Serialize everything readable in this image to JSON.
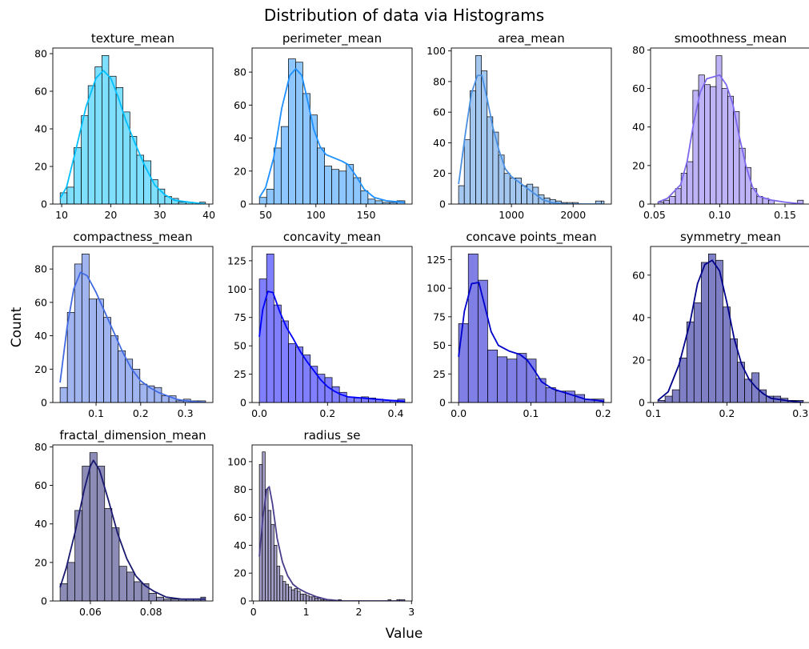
{
  "figure": {
    "title": "Distribution of data via Histograms",
    "xlabel": "Value",
    "ylabel": "Count"
  },
  "chart_data": [
    {
      "type": "histogram",
      "title": "texture_mean",
      "color": "#00BFFF",
      "bins": [
        9.7,
        11.1,
        12.5,
        14.0,
        15.4,
        16.8,
        18.2,
        19.6,
        21.1,
        22.5,
        23.9,
        25.3,
        26.7,
        28.2,
        29.6,
        31.0,
        32.4,
        33.8,
        35.3,
        36.7,
        38.1,
        39.3
      ],
      "counts": [
        6,
        9,
        30,
        47,
        63,
        73,
        79,
        68,
        62,
        49,
        36,
        26,
        23,
        13,
        8,
        4,
        3,
        1,
        1,
        0,
        1
      ],
      "kde": [
        [
          9.7,
          3
        ],
        [
          11,
          9
        ],
        [
          13,
          30
        ],
        [
          15,
          52
        ],
        [
          17,
          67
        ],
        [
          18.5,
          71
        ],
        [
          20,
          67
        ],
        [
          21.5,
          57
        ],
        [
          23,
          45
        ],
        [
          25,
          32
        ],
        [
          27,
          20
        ],
        [
          29,
          10
        ],
        [
          31,
          5
        ],
        [
          33,
          2
        ],
        [
          36,
          1
        ],
        [
          39.3,
          0
        ]
      ],
      "xlim": [
        8.2,
        40.8
      ],
      "ylim": [
        0,
        83
      ],
      "xticks": [
        10,
        20,
        30,
        40
      ],
      "yticks": [
        0,
        20,
        40,
        60,
        80
      ]
    },
    {
      "type": "histogram",
      "title": "perimeter_mean",
      "color": "#1E90FF",
      "bins": [
        43.8,
        51.0,
        58.2,
        65.4,
        72.6,
        79.8,
        87.0,
        94.2,
        101.4,
        108.6,
        115.8,
        123.0,
        130.2,
        137.4,
        144.6,
        151.8,
        159.0,
        166.2,
        173.4,
        180.6,
        188.5
      ],
      "counts": [
        4,
        9,
        34,
        47,
        88,
        86,
        67,
        54,
        34,
        23,
        21,
        20,
        24,
        16,
        8,
        3,
        2,
        1,
        1,
        2
      ],
      "kde": [
        [
          43.8,
          4
        ],
        [
          50,
          10
        ],
        [
          58,
          28
        ],
        [
          66,
          58
        ],
        [
          74,
          78
        ],
        [
          80,
          82
        ],
        [
          86,
          78
        ],
        [
          92,
          62
        ],
        [
          98,
          45
        ],
        [
          104,
          35
        ],
        [
          110,
          30
        ],
        [
          118,
          28
        ],
        [
          126,
          26
        ],
        [
          132,
          24
        ],
        [
          140,
          17
        ],
        [
          148,
          9
        ],
        [
          158,
          4
        ],
        [
          170,
          2
        ],
        [
          188,
          1
        ]
      ],
      "xlim": [
        36.5,
        195.7
      ],
      "ylim": [
        0,
        94.6
      ],
      "xticks": [
        50,
        100,
        150
      ],
      "yticks": [
        0,
        20,
        40,
        60,
        80
      ]
    },
    {
      "type": "histogram",
      "title": "area_mean",
      "color": "#4A90E2",
      "bins": [
        144,
        236,
        329,
        421,
        514,
        606,
        698,
        791,
        883,
        976,
        1068,
        1161,
        1253,
        1346,
        1438,
        1530,
        1623,
        1715,
        1808,
        1900,
        1993,
        2085,
        2178,
        2270,
        2363,
        2455,
        2501
      ],
      "counts": [
        12,
        42,
        74,
        97,
        87,
        57,
        47,
        32,
        20,
        17,
        17,
        12,
        13,
        11,
        6,
        4,
        3,
        2,
        1,
        1,
        1,
        0,
        0,
        0,
        2,
        2
      ],
      "kde": [
        [
          144,
          13
        ],
        [
          250,
          45
        ],
        [
          350,
          72
        ],
        [
          450,
          84
        ],
        [
          520,
          84
        ],
        [
          600,
          70
        ],
        [
          700,
          50
        ],
        [
          800,
          35
        ],
        [
          900,
          23
        ],
        [
          1000,
          18
        ],
        [
          1100,
          15
        ],
        [
          1200,
          12
        ],
        [
          1300,
          9
        ],
        [
          1400,
          6
        ],
        [
          1500,
          3
        ],
        [
          1650,
          1
        ],
        [
          1900,
          0
        ],
        [
          2501,
          0
        ]
      ],
      "xlim": [
        26,
        2619
      ],
      "ylim": [
        0,
        101.9
      ],
      "xticks": [
        1000,
        2000
      ],
      "yticks": [
        0,
        20,
        40,
        60,
        80,
        100
      ]
    },
    {
      "type": "histogram",
      "title": "smoothness_mean",
      "color": "#7B68EE",
      "bins": [
        0.0526,
        0.0571,
        0.0615,
        0.066,
        0.0704,
        0.0749,
        0.0794,
        0.0838,
        0.0883,
        0.0927,
        0.0972,
        0.1016,
        0.1061,
        0.1105,
        0.115,
        0.1195,
        0.1239,
        0.1284,
        0.1328,
        0.1373,
        0.1417,
        0.1462,
        0.1507,
        0.1551,
        0.1596,
        0.164
      ],
      "counts": [
        1,
        2,
        4,
        8,
        16,
        22,
        59,
        67,
        62,
        61,
        77,
        60,
        56,
        48,
        29,
        19,
        8,
        4,
        3,
        2,
        0,
        0,
        0,
        0,
        2
      ],
      "kde": [
        [
          0.0526,
          1
        ],
        [
          0.06,
          3
        ],
        [
          0.07,
          10
        ],
        [
          0.075,
          22
        ],
        [
          0.08,
          42
        ],
        [
          0.085,
          58
        ],
        [
          0.09,
          65
        ],
        [
          0.095,
          66
        ],
        [
          0.1,
          67
        ],
        [
          0.105,
          62
        ],
        [
          0.11,
          52
        ],
        [
          0.115,
          35
        ],
        [
          0.12,
          20
        ],
        [
          0.125,
          9
        ],
        [
          0.13,
          4
        ],
        [
          0.14,
          2
        ],
        [
          0.15,
          1
        ],
        [
          0.164,
          0
        ]
      ],
      "xlim": [
        0.047,
        0.1696
      ],
      "ylim": [
        0,
        81
      ],
      "xticks": [
        0.05,
        0.1,
        0.15
      ],
      "yticks": [
        0,
        20,
        40,
        60,
        80
      ]
    },
    {
      "type": "histogram",
      "title": "compactness_mean",
      "color": "#4169E1",
      "bins": [
        0.0194,
        0.0357,
        0.0519,
        0.0682,
        0.0844,
        0.1007,
        0.1169,
        0.1332,
        0.1494,
        0.1657,
        0.1819,
        0.1982,
        0.2144,
        0.2307,
        0.2469,
        0.2632,
        0.2794,
        0.2957,
        0.3119,
        0.3282,
        0.3454
      ],
      "counts": [
        9,
        54,
        83,
        89,
        62,
        62,
        51,
        40,
        31,
        26,
        20,
        11,
        10,
        9,
        4,
        4,
        1,
        2,
        1,
        1
      ],
      "kde": [
        [
          0.0194,
          12
        ],
        [
          0.035,
          45
        ],
        [
          0.05,
          68
        ],
        [
          0.065,
          78
        ],
        [
          0.08,
          76
        ],
        [
          0.1,
          66
        ],
        [
          0.12,
          54
        ],
        [
          0.14,
          42
        ],
        [
          0.16,
          30
        ],
        [
          0.18,
          20
        ],
        [
          0.2,
          13
        ],
        [
          0.22,
          9
        ],
        [
          0.24,
          6
        ],
        [
          0.26,
          4
        ],
        [
          0.28,
          2
        ],
        [
          0.3,
          1
        ],
        [
          0.345,
          0
        ]
      ],
      "xlim": [
        0.0031,
        0.3617
      ],
      "ylim": [
        0,
        93.5
      ],
      "xticks": [
        0.1,
        0.2,
        0.3
      ],
      "yticks": [
        0,
        20,
        40,
        60,
        80
      ]
    },
    {
      "type": "histogram",
      "title": "concavity_mean",
      "color": "#0000FF",
      "bins": [
        0,
        0.0214,
        0.0427,
        0.0641,
        0.0854,
        0.1068,
        0.1281,
        0.1495,
        0.1708,
        0.1922,
        0.2135,
        0.2349,
        0.2562,
        0.2776,
        0.2989,
        0.3203,
        0.3416,
        0.363,
        0.3843,
        0.4057,
        0.4268
      ],
      "counts": [
        109,
        131,
        86,
        72,
        52,
        49,
        42,
        32,
        25,
        22,
        14,
        9,
        5,
        4,
        5,
        4,
        3,
        2,
        2,
        3
      ],
      "kde": [
        [
          0,
          58
        ],
        [
          0.01,
          82
        ],
        [
          0.025,
          98
        ],
        [
          0.04,
          97
        ],
        [
          0.06,
          80
        ],
        [
          0.08,
          66
        ],
        [
          0.1,
          56
        ],
        [
          0.12,
          45
        ],
        [
          0.14,
          36
        ],
        [
          0.16,
          28
        ],
        [
          0.18,
          20
        ],
        [
          0.2,
          14
        ],
        [
          0.22,
          10
        ],
        [
          0.24,
          7
        ],
        [
          0.26,
          5
        ],
        [
          0.3,
          4
        ],
        [
          0.34,
          3
        ],
        [
          0.38,
          2
        ],
        [
          0.4268,
          1
        ]
      ],
      "xlim": [
        -0.0213,
        0.4481
      ],
      "ylim": [
        0,
        137.6
      ],
      "xticks": [
        0.0,
        0.2,
        0.4
      ],
      "yticks": [
        0,
        25,
        50,
        75,
        100,
        125
      ]
    },
    {
      "type": "histogram",
      "title": "concave points_mean",
      "color": "#0000CD",
      "bins": [
        0,
        0.0134,
        0.0268,
        0.0402,
        0.0537,
        0.0671,
        0.0805,
        0.0939,
        0.1073,
        0.1207,
        0.1341,
        0.1476,
        0.161,
        0.1744,
        0.1878,
        0.2012
      ],
      "counts": [
        69,
        130,
        107,
        46,
        40,
        38,
        43,
        38,
        21,
        13,
        10,
        10,
        7,
        3,
        3
      ],
      "kde": [
        [
          0,
          40
        ],
        [
          0.008,
          80
        ],
        [
          0.018,
          104
        ],
        [
          0.028,
          105
        ],
        [
          0.036,
          85
        ],
        [
          0.045,
          62
        ],
        [
          0.055,
          50
        ],
        [
          0.07,
          45
        ],
        [
          0.085,
          42
        ],
        [
          0.095,
          37
        ],
        [
          0.105,
          28
        ],
        [
          0.115,
          18
        ],
        [
          0.13,
          12
        ],
        [
          0.145,
          9
        ],
        [
          0.16,
          6
        ],
        [
          0.175,
          3
        ],
        [
          0.19,
          2
        ],
        [
          0.2012,
          1
        ]
      ],
      "xlim": [
        -0.0101,
        0.2113
      ],
      "ylim": [
        0,
        136.5
      ],
      "xticks": [
        0.0,
        0.1,
        0.2
      ],
      "yticks": [
        0,
        25,
        50,
        75,
        100,
        125
      ]
    },
    {
      "type": "histogram",
      "title": "symmetry_mean",
      "color": "#00008B",
      "bins": [
        0.106,
        0.1158,
        0.1257,
        0.1355,
        0.1454,
        0.1552,
        0.1651,
        0.1749,
        0.1847,
        0.1946,
        0.2044,
        0.2143,
        0.2241,
        0.2339,
        0.2438,
        0.2536,
        0.2635,
        0.2733,
        0.2832,
        0.293,
        0.304
      ],
      "counts": [
        1,
        3,
        6,
        21,
        38,
        47,
        66,
        70,
        67,
        45,
        30,
        19,
        11,
        14,
        6,
        3,
        3,
        2,
        1,
        1
      ],
      "kde": [
        [
          0.106,
          1
        ],
        [
          0.12,
          5
        ],
        [
          0.135,
          18
        ],
        [
          0.15,
          38
        ],
        [
          0.16,
          56
        ],
        [
          0.17,
          65
        ],
        [
          0.18,
          67
        ],
        [
          0.19,
          62
        ],
        [
          0.2,
          47
        ],
        [
          0.21,
          30
        ],
        [
          0.22,
          18
        ],
        [
          0.23,
          11
        ],
        [
          0.24,
          7
        ],
        [
          0.25,
          4
        ],
        [
          0.26,
          2
        ],
        [
          0.28,
          1
        ],
        [
          0.304,
          0
        ]
      ],
      "xlim": [
        0.0961,
        0.3139
      ],
      "ylim": [
        0,
        73.5
      ],
      "xticks": [
        0.1,
        0.2,
        0.3
      ],
      "yticks": [
        0,
        20,
        40,
        60
      ]
    },
    {
      "type": "histogram",
      "title": "fractal_dimension_mean",
      "color": "#191970",
      "bins": [
        0.05,
        0.0524,
        0.0549,
        0.0573,
        0.0598,
        0.0622,
        0.0647,
        0.0671,
        0.0695,
        0.072,
        0.0744,
        0.0769,
        0.0793,
        0.0818,
        0.0842,
        0.0866,
        0.0891,
        0.0915,
        0.094,
        0.0964,
        0.098
      ],
      "counts": [
        9,
        20,
        47,
        70,
        77,
        70,
        48,
        38,
        18,
        15,
        10,
        9,
        4,
        2,
        1,
        1,
        1,
        1,
        1,
        2
      ],
      "kde": [
        [
          0.05,
          7
        ],
        [
          0.052,
          17
        ],
        [
          0.055,
          36
        ],
        [
          0.058,
          58
        ],
        [
          0.06,
          70
        ],
        [
          0.061,
          73
        ],
        [
          0.063,
          68
        ],
        [
          0.066,
          52
        ],
        [
          0.069,
          35
        ],
        [
          0.072,
          22
        ],
        [
          0.075,
          13
        ],
        [
          0.078,
          8
        ],
        [
          0.081,
          5
        ],
        [
          0.085,
          2
        ],
        [
          0.09,
          1
        ],
        [
          0.098,
          1
        ]
      ],
      "xlim": [
        0.0476,
        0.1004
      ],
      "ylim": [
        0,
        81
      ],
      "xticks": [
        0.06,
        0.08
      ],
      "yticks": [
        0,
        20,
        40,
        60,
        80
      ]
    },
    {
      "type": "histogram",
      "title": "radius_se",
      "color": "#483D8B",
      "bins": [
        0.112,
        0.168,
        0.223,
        0.279,
        0.334,
        0.39,
        0.445,
        0.501,
        0.556,
        0.612,
        0.667,
        0.723,
        0.778,
        0.834,
        0.889,
        0.945,
        1.0,
        1.056,
        1.111,
        1.167,
        1.222,
        1.278,
        1.333,
        1.389,
        1.444,
        1.5,
        1.555,
        1.611,
        1.666,
        1.722,
        1.777,
        1.833,
        1.888,
        1.944,
        1.999,
        2.055,
        2.11,
        2.166,
        2.221,
        2.277,
        2.332,
        2.388,
        2.443,
        2.499,
        2.554,
        2.61,
        2.665,
        2.721,
        2.776,
        2.873
      ],
      "counts": [
        98,
        107,
        80,
        65,
        55,
        40,
        25,
        18,
        14,
        12,
        10,
        8,
        9,
        7,
        5,
        5,
        4,
        3,
        3,
        2,
        2,
        1,
        1,
        1,
        1,
        0,
        0,
        1,
        0,
        0,
        0,
        0,
        0,
        0,
        0,
        0,
        0,
        0,
        0,
        0,
        0,
        0,
        0,
        0,
        1,
        0,
        0,
        1,
        1
      ],
      "kde": [
        [
          0.112,
          32
        ],
        [
          0.18,
          60
        ],
        [
          0.25,
          80
        ],
        [
          0.3,
          82
        ],
        [
          0.36,
          70
        ],
        [
          0.45,
          45
        ],
        [
          0.55,
          28
        ],
        [
          0.65,
          18
        ],
        [
          0.75,
          12
        ],
        [
          0.85,
          9
        ],
        [
          1.0,
          6
        ],
        [
          1.2,
          3
        ],
        [
          1.4,
          1
        ],
        [
          1.7,
          0
        ],
        [
          2.5,
          0
        ],
        [
          2.873,
          0
        ]
      ],
      "xlim": [
        -0.026,
        3.011
      ],
      "ylim": [
        0,
        112
      ],
      "xticks": [
        0,
        1,
        2,
        3
      ],
      "yticks": [
        0,
        20,
        40,
        60,
        80,
        100
      ]
    }
  ]
}
